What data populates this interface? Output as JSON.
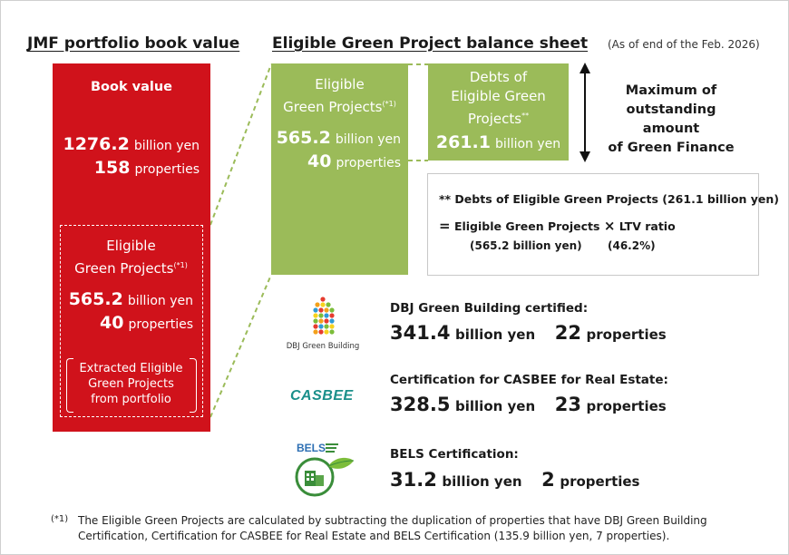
{
  "headings": {
    "portfolio": "JMF portfolio book value",
    "balance_sheet": "Eligible Green Project balance sheet",
    "as_of": "(As of end of the Feb. 2026)"
  },
  "book_value_box": {
    "title": "Book value",
    "value": "1276.2",
    "value_unit": "billion yen",
    "count": "158",
    "count_unit": "properties"
  },
  "eligible_inner": {
    "title_line1": "Eligible",
    "title_line2": "Green Projects",
    "note_mark": "(*1)",
    "value": "565.2",
    "value_unit": "billion yen",
    "count": "40",
    "count_unit": "properties",
    "extracted_line1": "Extracted Eligible",
    "extracted_line2": "Green Projects",
    "extracted_line3": "from portfolio"
  },
  "green_assets": {
    "title_line1": "Eligible",
    "title_line2": "Green Projects",
    "note_mark": "(*1)",
    "value": "565.2",
    "value_unit": "billion yen",
    "count": "40",
    "count_unit": "properties"
  },
  "green_debts": {
    "title_line1": "Debts of",
    "title_line2": "Eligible Green",
    "title_line3": "Projects",
    "note_mark": "**",
    "value": "261.1",
    "value_unit": "billion yen"
  },
  "max_outstanding": {
    "line1": "Maximum of",
    "line2": "outstanding amount",
    "line3": "of Green Finance"
  },
  "debt_note": {
    "line1": "** Debts of Eligible Green Projects (261.1 billion yen)",
    "eq": "=",
    "line2a": "Eligible Green Projects",
    "times": "×",
    "line2b": "LTV ratio",
    "sub1": "(565.2 billion yen)",
    "sub2": "(46.2%)"
  },
  "certifications": [
    {
      "logo_text": "DBJ Green Building",
      "title": "DBJ Green Building certified:",
      "value": "341.4",
      "value_unit": "billion yen",
      "count": "22",
      "count_unit": "properties"
    },
    {
      "logo_text": "CASBEE",
      "title": "Certification for CASBEE for Real Estate:",
      "value": "328.5",
      "value_unit": "billion yen",
      "count": "23",
      "count_unit": "properties"
    },
    {
      "logo_text": "BELS",
      "title": "BELS Certification:",
      "value": "31.2",
      "value_unit": "billion yen",
      "count": "2",
      "count_unit": "properties"
    }
  ],
  "footnote": {
    "mark": "(*1)",
    "text": "The Eligible Green Projects are calculated by subtracting the duplication of properties that have DBJ Green Building Certification, Certification for CASBEE for Real Estate and BELS Certification (135.9 billion yen, 7 properties)."
  },
  "colors": {
    "red": "#d0121b",
    "green": "#9bbb59",
    "casbee_teal": "#1a8f8a",
    "bels_green": "#3a8d3a"
  }
}
